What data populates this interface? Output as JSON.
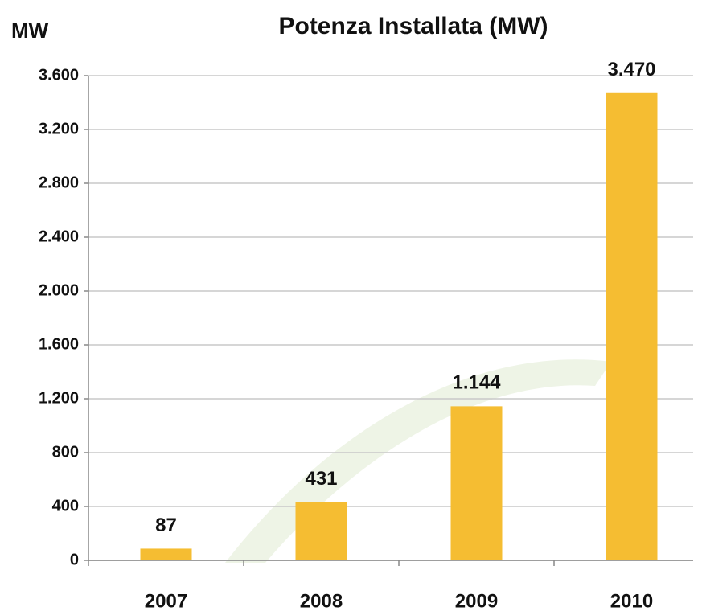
{
  "chart_data": {
    "type": "bar",
    "title": "Potenza Installata (MW)",
    "y_label": "MW",
    "categories": [
      "2007",
      "2008",
      "2009",
      "2010"
    ],
    "values": [
      87,
      431,
      1144,
      3470
    ],
    "value_labels": [
      "87",
      "431",
      "1.144",
      "3.470"
    ],
    "color": "#f5bd32",
    "ylim": [
      0,
      3600
    ],
    "yticks": [
      0,
      400,
      800,
      {
        "value": 1200,
        "label": "1.200"
      },
      {
        "value": 1600,
        "label": "1.600"
      },
      {
        "value": 2000,
        "label": "2.000"
      },
      {
        "value": 2400,
        "label": "2.400"
      },
      {
        "value": 2800,
        "label": "2.800"
      },
      {
        "value": 3200,
        "label": "3.200"
      },
      {
        "value": 3600,
        "label": "3.600"
      }
    ],
    "grid": true
  }
}
